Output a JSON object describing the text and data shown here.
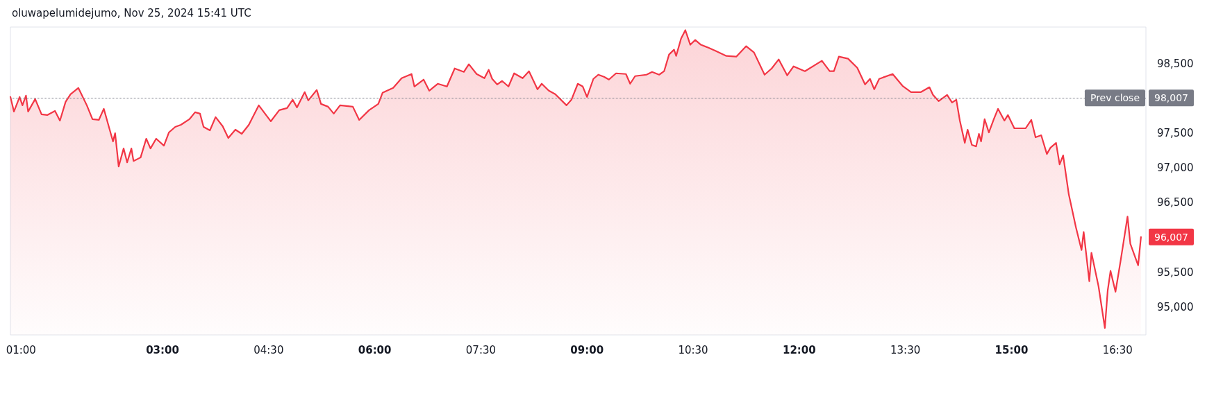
{
  "chart_data": {
    "type": "area",
    "title": "oluwapelumidejumo, Nov 25, 2024 15:41 UTC",
    "series": [
      {
        "color": "#f23645",
        "x": [
          0.85,
          0.9,
          0.98,
          1.02,
          1.07,
          1.1,
          1.2,
          1.29,
          1.37,
          1.48,
          1.55,
          1.63,
          1.7,
          1.81,
          1.93,
          2.01,
          2.1,
          2.17,
          2.22,
          2.3,
          2.33,
          2.38,
          2.45,
          2.5,
          2.56,
          2.59,
          2.69,
          2.77,
          2.83,
          2.91,
          3.02,
          3.09,
          3.18,
          3.26,
          3.38,
          3.46,
          3.53,
          3.58,
          3.67,
          3.75,
          3.85,
          3.93,
          4.03,
          4.12,
          4.22,
          4.36,
          4.53,
          4.65,
          4.76,
          4.84,
          4.9,
          5.01,
          5.06,
          5.18,
          5.24,
          5.34,
          5.42,
          5.51,
          5.69,
          5.78,
          5.92,
          6.05,
          6.11,
          6.26,
          6.38,
          6.52,
          6.56,
          6.69,
          6.77,
          6.89,
          7.02,
          7.13,
          7.26,
          7.33,
          7.44,
          7.55,
          7.61,
          7.66,
          7.73,
          7.8,
          7.89,
          7.97,
          8.09,
          8.18,
          8.3,
          8.36,
          8.46,
          8.55,
          8.71,
          8.78,
          8.87,
          8.94,
          9.0,
          9.09,
          9.16,
          9.24,
          9.31,
          9.41,
          9.55,
          9.61,
          9.68,
          9.84,
          9.92,
          10.02,
          10.09,
          10.16,
          10.23,
          10.26,
          10.33,
          10.39,
          10.46,
          10.53,
          10.61,
          10.71,
          10.82,
          10.97,
          11.11,
          11.25,
          11.36,
          11.51,
          11.61,
          11.71,
          11.83,
          11.92,
          12.08,
          12.32,
          12.43,
          12.49,
          12.56,
          12.69,
          12.82,
          12.93,
          13.0,
          13.06,
          13.13,
          13.32,
          13.46,
          13.58,
          13.72,
          13.84,
          13.89,
          13.97,
          14.09,
          14.16,
          14.22,
          14.27,
          14.34,
          14.38,
          14.44,
          14.5,
          14.54,
          14.57,
          14.62,
          14.68,
          14.75,
          14.81,
          14.9,
          14.95,
          15.04,
          15.2,
          15.28,
          15.34,
          15.42,
          15.5,
          15.55,
          15.63,
          15.68,
          15.73,
          15.81,
          15.91,
          15.99,
          16.02,
          16.1,
          16.13,
          16.23,
          16.32,
          16.36,
          16.4,
          16.47,
          16.54,
          16.64,
          16.68,
          16.79,
          16.83
        ],
        "values": [
          98020,
          97810,
          98020,
          97900,
          98040,
          97810,
          97990,
          97770,
          97760,
          97820,
          97680,
          97950,
          98060,
          98150,
          97900,
          97700,
          97690,
          97850,
          97670,
          97380,
          97500,
          97020,
          97280,
          97080,
          97280,
          97100,
          97150,
          97420,
          97280,
          97420,
          97320,
          97510,
          97590,
          97620,
          97700,
          97800,
          97780,
          97590,
          97540,
          97730,
          97600,
          97430,
          97550,
          97490,
          97620,
          97900,
          97670,
          97830,
          97860,
          97980,
          97870,
          98090,
          97970,
          98120,
          97920,
          97880,
          97780,
          97900,
          97880,
          97690,
          97830,
          97920,
          98080,
          98150,
          98290,
          98350,
          98170,
          98270,
          98110,
          98210,
          98170,
          98430,
          98380,
          98490,
          98350,
          98290,
          98410,
          98280,
          98200,
          98250,
          98170,
          98360,
          98290,
          98390,
          98130,
          98210,
          98110,
          98060,
          97900,
          97980,
          98210,
          98170,
          98020,
          98280,
          98340,
          98310,
          98270,
          98360,
          98350,
          98210,
          98320,
          98340,
          98380,
          98340,
          98390,
          98630,
          98700,
          98610,
          98860,
          98980,
          98770,
          98840,
          98770,
          98730,
          98680,
          98610,
          98600,
          98750,
          98660,
          98340,
          98430,
          98560,
          98330,
          98460,
          98390,
          98540,
          98390,
          98390,
          98600,
          98570,
          98440,
          98200,
          98280,
          98130,
          98280,
          98350,
          98180,
          98090,
          98090,
          98160,
          98050,
          97960,
          98050,
          97940,
          97980,
          97680,
          97360,
          97550,
          97330,
          97310,
          97490,
          97380,
          97700,
          97510,
          97700,
          97850,
          97680,
          97760,
          97570,
          97570,
          97690,
          97440,
          97470,
          97200,
          97290,
          97360,
          97050,
          97180,
          96620,
          96150,
          95820,
          96080,
          95370,
          95780,
          95300,
          94700,
          95240,
          95520,
          95220,
          95650,
          96300,
          95910,
          95600,
          96007
        ]
      }
    ],
    "xlim": [
      0.85,
      16.9
    ],
    "xticks": [
      {
        "value": 1,
        "label": "01:00"
      },
      {
        "value": 3,
        "label": "03:00"
      },
      {
        "value": 4.5,
        "label": "04:30"
      },
      {
        "value": 6,
        "label": "06:00"
      },
      {
        "value": 7.5,
        "label": "07:30"
      },
      {
        "value": 9,
        "label": "09:00"
      },
      {
        "value": 10.5,
        "label": "10:30"
      },
      {
        "value": 12,
        "label": "12:00"
      },
      {
        "value": 13.5,
        "label": "13:30"
      },
      {
        "value": 15,
        "label": "15:00"
      },
      {
        "value": 16.5,
        "label": "16:30"
      }
    ],
    "ylim": [
      94600,
      99025
    ],
    "yticks": [
      {
        "value": 95000,
        "label": "95,000"
      },
      {
        "value": 95500,
        "label": "95,500"
      },
      {
        "value": 96500,
        "label": "96,500"
      },
      {
        "value": 97000,
        "label": "97,000"
      },
      {
        "value": 97500,
        "label": "97,500"
      },
      {
        "value": 98500,
        "label": "98,500"
      }
    ],
    "ref_lines": [
      {
        "axis": "y",
        "value": 98007,
        "label": "Prev close",
        "color": "#787b86",
        "line_style": "dotted"
      }
    ],
    "annotations": [
      "98,007",
      "96,007"
    ],
    "grid": false,
    "marker": "none",
    "line_style": "solid"
  }
}
